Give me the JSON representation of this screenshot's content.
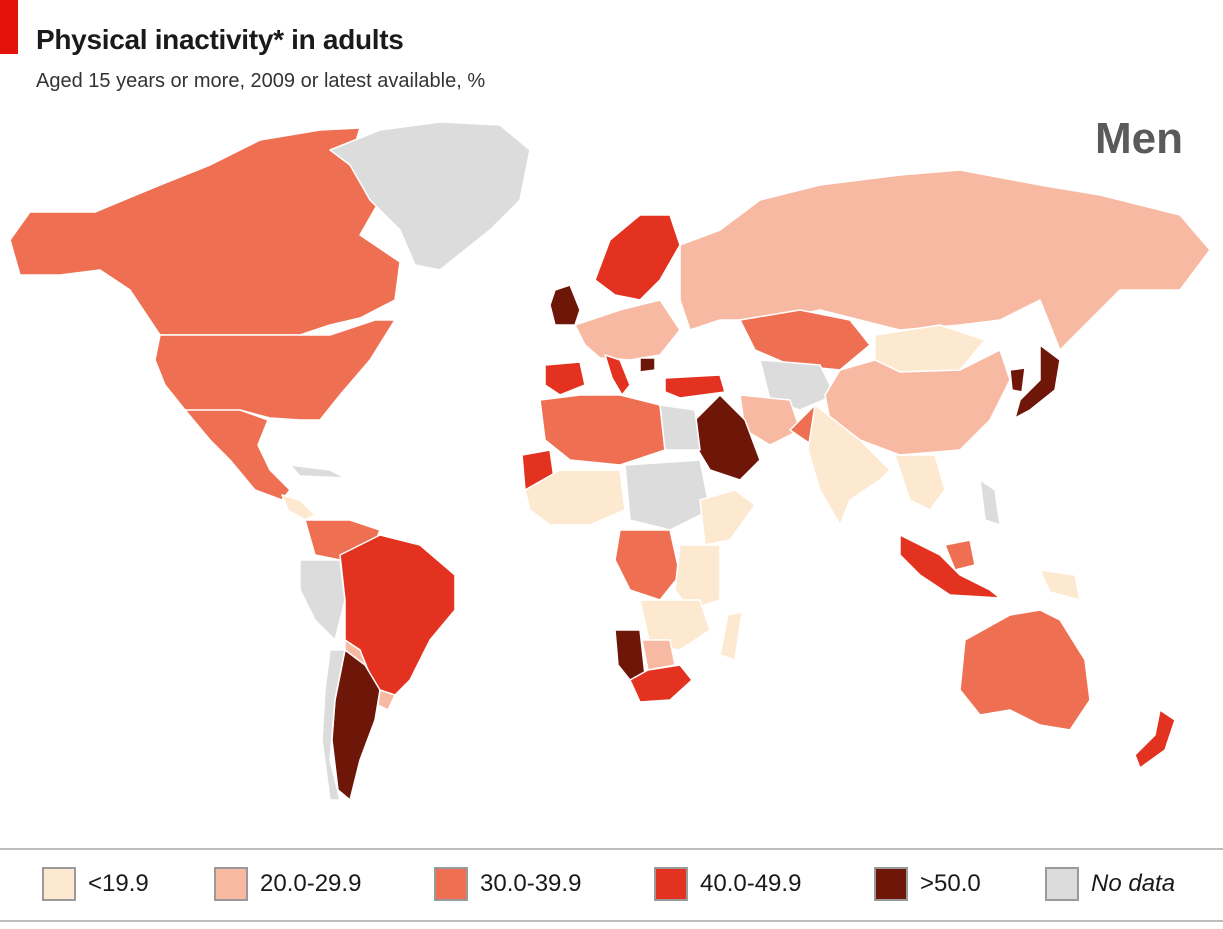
{
  "title": "Physical inactivity* in adults",
  "subtitle": "Aged 15 years or more, 2009 or latest available, %",
  "panel_label": "Men",
  "colors": {
    "accent": "#e3120b",
    "below_19_9": "#fde9d0",
    "r20_29_9": "#f8b9a2",
    "r30_39_9": "#ee6f52",
    "r40_49_9": "#e3321f",
    "above_50": "#6e1608",
    "no_data": "#dcdcdc",
    "border": "#ffffff"
  },
  "legend": [
    {
      "label": "<19.9",
      "color": "#fde9d0"
    },
    {
      "label": "20.0-29.9",
      "color": "#f8b9a2"
    },
    {
      "label": "30.0-39.9",
      "color": "#ee6f52"
    },
    {
      "label": "40.0-49.9",
      "color": "#e3321f"
    },
    {
      "label": ">50.0",
      "color": "#6e1608"
    },
    {
      "label": "No data",
      "color": "#dcdcdc"
    }
  ],
  "regions": [
    {
      "name": "Canada",
      "category": "30.0-39.9"
    },
    {
      "name": "United States",
      "category": "30.0-39.9"
    },
    {
      "name": "Mexico",
      "category": "30.0-39.9"
    },
    {
      "name": "Greenland",
      "category": "No data"
    },
    {
      "name": "Brazil",
      "category": "40.0-49.9"
    },
    {
      "name": "Argentina",
      "category": ">50.0"
    },
    {
      "name": "Russia",
      "category": "20.0-29.9"
    },
    {
      "name": "China",
      "category": "20.0-29.9"
    },
    {
      "name": "Mongolia",
      "category": "<19.9"
    },
    {
      "name": "India",
      "category": "<19.9"
    },
    {
      "name": "Kazakhstan",
      "category": "30.0-39.9"
    },
    {
      "name": "Saudi Arabia",
      "category": ">50.0"
    },
    {
      "name": "Japan",
      "category": ">50.0"
    },
    {
      "name": "Britain",
      "category": ">50.0"
    },
    {
      "name": "Scandinavia",
      "category": "40.0-49.9"
    },
    {
      "name": "Spain",
      "category": "40.0-49.9"
    },
    {
      "name": "Turkey",
      "category": "40.0-49.9"
    },
    {
      "name": "Australia",
      "category": "30.0-39.9"
    },
    {
      "name": "New Zealand",
      "category": "40.0-49.9"
    },
    {
      "name": "South Africa",
      "category": "40.0-49.9"
    },
    {
      "name": "Namibia",
      "category": ">50.0"
    }
  ]
}
